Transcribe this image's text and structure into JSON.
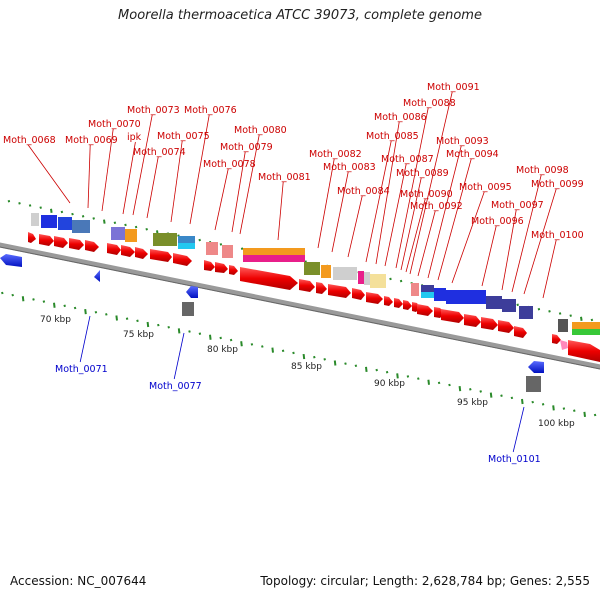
{
  "title": "Moorella thermoacetica ATCC 39073, complete genome",
  "footer": {
    "accession": "Accession: NC_007644",
    "info": "Topology: circular; Length: 2,628,784 bp; Genes: 2,555"
  },
  "colors": {
    "forward_label": "#cc0000",
    "reverse_label": "#0000cc",
    "backbone": "#888888",
    "tick": "#2a8a2a"
  },
  "ticks": [
    "70 kbp",
    "75 kbp",
    "80 kbp",
    "85 kbp",
    "90 kbp",
    "95 kbp",
    "100 kbp"
  ],
  "forward_labels": [
    "Moth_0068",
    "Moth_0069",
    "Moth_0070",
    "ipk",
    "Moth_0073",
    "Moth_0074",
    "Moth_0075",
    "Moth_0076",
    "Moth_0078",
    "Moth_0079",
    "Moth_0080",
    "Moth_0081",
    "Moth_0082",
    "Moth_0083",
    "Moth_0084",
    "Moth_0085",
    "Moth_0086",
    "Moth_0087",
    "Moth_0088",
    "Moth_0089",
    "Moth_0090",
    "Moth_0091",
    "Moth_0092",
    "Moth_0093",
    "Moth_0094",
    "Moth_0095",
    "Moth_0096",
    "Moth_0097",
    "Moth_0098",
    "Moth_0099",
    "Moth_0100"
  ],
  "reverse_labels": [
    "Moth_0071",
    "Moth_0077",
    "Moth_0101"
  ]
}
